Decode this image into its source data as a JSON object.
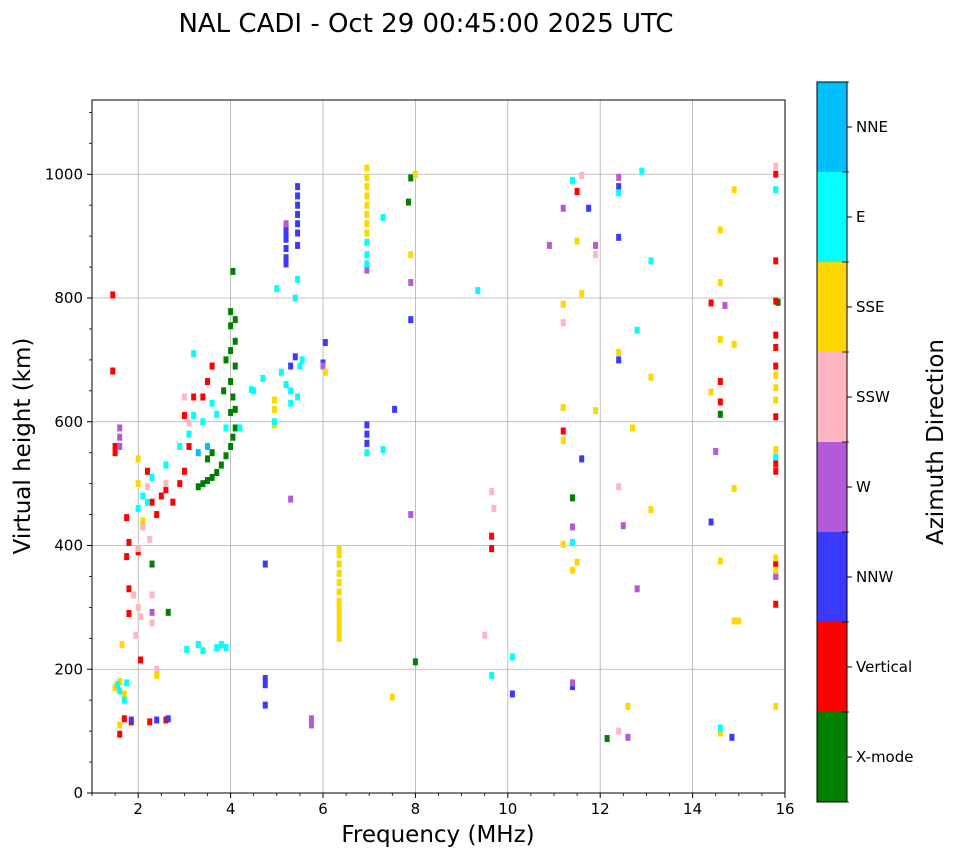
{
  "chart_data": {
    "type": "scatter",
    "title": "NAL CADI - Oct 29 00:45:00 2025 UTC",
    "xlabel": "Frequency (MHz)",
    "ylabel": "Virtual height (km)",
    "xlim": [
      1,
      16
    ],
    "ylim": [
      0,
      1120
    ],
    "xticks": [
      2,
      4,
      6,
      8,
      10,
      12,
      14,
      16
    ],
    "yticks": [
      0,
      200,
      400,
      600,
      800,
      1000
    ],
    "grid": true,
    "colorbar": {
      "label": "Azimuth Direction",
      "categories": [
        "X-mode",
        "Vertical",
        "NNW",
        "W",
        "SSW",
        "SSE",
        "E",
        "NNE"
      ],
      "colors": [
        "#008000",
        "#ff0000",
        "#3a3aff",
        "#b45ad8",
        "#ffb6c1",
        "#ffd700",
        "#00ffff",
        "#00bfff"
      ]
    },
    "series": [
      {
        "name": "X-mode",
        "points": [
          [
            3.3,
            495
          ],
          [
            3.4,
            500
          ],
          [
            3.5,
            505
          ],
          [
            3.6,
            510
          ],
          [
            3.7,
            518
          ],
          [
            3.8,
            530
          ],
          [
            3.9,
            545
          ],
          [
            4.0,
            560
          ],
          [
            4.05,
            575
          ],
          [
            4.1,
            590
          ],
          [
            4.0,
            615
          ],
          [
            4.1,
            620
          ],
          [
            4.05,
            640
          ],
          [
            4.0,
            665
          ],
          [
            4.1,
            690
          ],
          [
            4.0,
            715
          ],
          [
            4.1,
            730
          ],
          [
            4.0,
            755
          ],
          [
            4.1,
            765
          ],
          [
            4.0,
            778
          ],
          [
            4.05,
            843
          ],
          [
            3.9,
            700
          ],
          [
            3.85,
            650
          ],
          [
            3.6,
            550
          ],
          [
            3.5,
            540
          ],
          [
            2.3,
            370
          ],
          [
            2.65,
            292
          ],
          [
            7.9,
            994
          ],
          [
            7.85,
            955
          ],
          [
            8.0,
            212
          ],
          [
            11.4,
            477
          ],
          [
            12.15,
            88
          ],
          [
            14.6,
            612
          ],
          [
            15.85,
            793
          ]
        ]
      },
      {
        "name": "Vertical",
        "points": [
          [
            1.45,
            805
          ],
          [
            1.45,
            682
          ],
          [
            1.5,
            560
          ],
          [
            1.5,
            550
          ],
          [
            1.75,
            445
          ],
          [
            1.8,
            405
          ],
          [
            1.75,
            382
          ],
          [
            1.8,
            330
          ],
          [
            1.8,
            290
          ],
          [
            1.7,
            120
          ],
          [
            1.6,
            95
          ],
          [
            1.85,
            115
          ],
          [
            2.0,
            390
          ],
          [
            2.05,
            215
          ],
          [
            2.2,
            520
          ],
          [
            2.3,
            470
          ],
          [
            2.4,
            450
          ],
          [
            2.5,
            480
          ],
          [
            2.6,
            490
          ],
          [
            2.75,
            470
          ],
          [
            2.9,
            500
          ],
          [
            3.0,
            520
          ],
          [
            3.1,
            560
          ],
          [
            3.0,
            610
          ],
          [
            3.2,
            640
          ],
          [
            3.5,
            665
          ],
          [
            3.6,
            690
          ],
          [
            3.4,
            640
          ],
          [
            2.25,
            115
          ],
          [
            2.6,
            118
          ],
          [
            9.65,
            415
          ],
          [
            9.65,
            395
          ],
          [
            11.5,
            972
          ],
          [
            11.2,
            585
          ],
          [
            14.4,
            792
          ],
          [
            14.6,
            665
          ],
          [
            14.6,
            632
          ],
          [
            15.8,
            860
          ],
          [
            15.8,
            795
          ],
          [
            15.8,
            740
          ],
          [
            15.8,
            720
          ],
          [
            15.8,
            690
          ],
          [
            15.8,
            608
          ],
          [
            15.8,
            532
          ],
          [
            15.8,
            520
          ],
          [
            15.8,
            370
          ],
          [
            15.8,
            305
          ],
          [
            15.8,
            1000
          ]
        ]
      },
      {
        "name": "NNW",
        "points": [
          [
            5.2,
            915
          ],
          [
            5.2,
            905
          ],
          [
            5.2,
            895
          ],
          [
            5.2,
            880
          ],
          [
            5.2,
            865
          ],
          [
            5.2,
            855
          ],
          [
            5.45,
            980
          ],
          [
            5.45,
            965
          ],
          [
            5.45,
            950
          ],
          [
            5.45,
            935
          ],
          [
            5.45,
            920
          ],
          [
            5.45,
            905
          ],
          [
            5.45,
            885
          ],
          [
            5.4,
            705
          ],
          [
            5.3,
            690
          ],
          [
            6.05,
            728
          ],
          [
            6.0,
            695
          ],
          [
            6.95,
            595
          ],
          [
            6.95,
            580
          ],
          [
            6.95,
            565
          ],
          [
            4.75,
            370
          ],
          [
            4.75,
            185
          ],
          [
            4.75,
            175
          ],
          [
            4.75,
            142
          ],
          [
            7.9,
            765
          ],
          [
            7.55,
            620
          ],
          [
            2.65,
            120
          ],
          [
            2.4,
            118
          ],
          [
            1.85,
            118
          ],
          [
            10.1,
            160
          ],
          [
            11.4,
            172
          ],
          [
            11.75,
            945
          ],
          [
            11.6,
            540
          ],
          [
            12.4,
            980
          ],
          [
            12.4,
            898
          ],
          [
            12.4,
            700
          ],
          [
            14.4,
            438
          ],
          [
            14.85,
            90
          ],
          [
            15.8,
            350
          ]
        ]
      },
      {
        "name": "W",
        "points": [
          [
            1.6,
            590
          ],
          [
            1.6,
            575
          ],
          [
            1.6,
            560
          ],
          [
            5.2,
            920
          ],
          [
            5.3,
            475
          ],
          [
            5.75,
            120
          ],
          [
            5.75,
            110
          ],
          [
            6.0,
            690
          ],
          [
            7.9,
            825
          ],
          [
            7.9,
            450
          ],
          [
            6.95,
            845
          ],
          [
            10.9,
            885
          ],
          [
            11.4,
            430
          ],
          [
            11.4,
            178
          ],
          [
            11.9,
            885
          ],
          [
            12.4,
            995
          ],
          [
            12.5,
            432
          ],
          [
            12.8,
            330
          ],
          [
            12.6,
            90
          ],
          [
            14.5,
            552
          ],
          [
            14.7,
            788
          ],
          [
            15.8,
            350
          ],
          [
            11.2,
            945
          ],
          [
            2.3,
            292
          ]
        ]
      },
      {
        "name": "SSW",
        "points": [
          [
            1.9,
            320
          ],
          [
            2.0,
            300
          ],
          [
            2.05,
            285
          ],
          [
            1.95,
            255
          ],
          [
            2.0,
            395
          ],
          [
            2.1,
            430
          ],
          [
            2.25,
            410
          ],
          [
            2.3,
            320
          ],
          [
            2.3,
            275
          ],
          [
            2.4,
            200
          ],
          [
            2.2,
            495
          ],
          [
            2.6,
            500
          ],
          [
            3.0,
            640
          ],
          [
            3.1,
            598
          ],
          [
            9.5,
            255
          ],
          [
            9.65,
            487
          ],
          [
            9.7,
            460
          ],
          [
            11.2,
            760
          ],
          [
            11.9,
            870
          ],
          [
            12.4,
            100
          ],
          [
            12.4,
            495
          ],
          [
            11.6,
            998
          ],
          [
            15.8,
            1013
          ]
        ]
      },
      {
        "name": "SSE",
        "points": [
          [
            6.35,
            395
          ],
          [
            6.35,
            385
          ],
          [
            6.35,
            370
          ],
          [
            6.35,
            355
          ],
          [
            6.35,
            340
          ],
          [
            6.35,
            325
          ],
          [
            6.35,
            310
          ],
          [
            6.35,
            300
          ],
          [
            6.35,
            290
          ],
          [
            6.35,
            280
          ],
          [
            6.35,
            270
          ],
          [
            6.35,
            260
          ],
          [
            6.35,
            250
          ],
          [
            6.95,
            1010
          ],
          [
            6.95,
            995
          ],
          [
            6.95,
            980
          ],
          [
            6.95,
            965
          ],
          [
            6.95,
            950
          ],
          [
            6.95,
            935
          ],
          [
            6.95,
            920
          ],
          [
            6.95,
            905
          ],
          [
            1.5,
            170
          ],
          [
            1.6,
            180
          ],
          [
            1.7,
            160
          ],
          [
            1.6,
            110
          ],
          [
            1.65,
            240
          ],
          [
            2.0,
            540
          ],
          [
            2.0,
            500
          ],
          [
            2.1,
            440
          ],
          [
            2.4,
            190
          ],
          [
            4.95,
            635
          ],
          [
            4.95,
            620
          ],
          [
            4.95,
            595
          ],
          [
            6.05,
            680
          ],
          [
            7.5,
            155
          ],
          [
            7.9,
            870
          ],
          [
            8.0,
            1000
          ],
          [
            11.2,
            790
          ],
          [
            11.2,
            623
          ],
          [
            11.2,
            570
          ],
          [
            11.2,
            402
          ],
          [
            11.4,
            360
          ],
          [
            11.5,
            892
          ],
          [
            11.5,
            373
          ],
          [
            11.6,
            807
          ],
          [
            11.9,
            618
          ],
          [
            12.4,
            712
          ],
          [
            12.7,
            590
          ],
          [
            12.6,
            140
          ],
          [
            13.1,
            672
          ],
          [
            13.1,
            458
          ],
          [
            14.4,
            648
          ],
          [
            14.6,
            910
          ],
          [
            14.6,
            825
          ],
          [
            14.6,
            733
          ],
          [
            14.6,
            375
          ],
          [
            14.6,
            97
          ],
          [
            14.9,
            975
          ],
          [
            14.9,
            725
          ],
          [
            14.9,
            492
          ],
          [
            14.9,
            278
          ],
          [
            15.0,
            278
          ],
          [
            15.8,
            975
          ],
          [
            15.8,
            675
          ],
          [
            15.8,
            655
          ],
          [
            15.8,
            635
          ],
          [
            15.8,
            555
          ],
          [
            15.8,
            380
          ],
          [
            15.8,
            360
          ],
          [
            15.8,
            140
          ]
        ]
      },
      {
        "name": "E",
        "points": [
          [
            1.55,
            175
          ],
          [
            1.6,
            165
          ],
          [
            1.75,
            178
          ],
          [
            1.7,
            150
          ],
          [
            2.0,
            460
          ],
          [
            2.1,
            480
          ],
          [
            2.2,
            470
          ],
          [
            2.3,
            510
          ],
          [
            2.6,
            530
          ],
          [
            2.9,
            560
          ],
          [
            3.1,
            580
          ],
          [
            3.2,
            610
          ],
          [
            3.4,
            600
          ],
          [
            3.6,
            630
          ],
          [
            3.7,
            612
          ],
          [
            3.9,
            590
          ],
          [
            4.2,
            590
          ],
          [
            4.5,
            650
          ],
          [
            4.7,
            670
          ],
          [
            3.05,
            232
          ],
          [
            3.3,
            240
          ],
          [
            3.4,
            230
          ],
          [
            3.7,
            235
          ],
          [
            3.8,
            240
          ],
          [
            3.9,
            235
          ],
          [
            3.2,
            710
          ],
          [
            4.45,
            652
          ],
          [
            4.95,
            600
          ],
          [
            5.0,
            815
          ],
          [
            5.1,
            680
          ],
          [
            5.2,
            660
          ],
          [
            5.3,
            650
          ],
          [
            5.3,
            630
          ],
          [
            5.5,
            690
          ],
          [
            5.55,
            700
          ],
          [
            5.45,
            640
          ],
          [
            5.45,
            830
          ],
          [
            5.4,
            800
          ],
          [
            6.95,
            890
          ],
          [
            6.95,
            870
          ],
          [
            6.95,
            855
          ],
          [
            6.95,
            550
          ],
          [
            7.3,
            930
          ],
          [
            7.3,
            555
          ],
          [
            9.35,
            812
          ],
          [
            9.65,
            190
          ],
          [
            10.1,
            220
          ],
          [
            11.4,
            990
          ],
          [
            11.4,
            405
          ],
          [
            12.4,
            970
          ],
          [
            12.8,
            748
          ],
          [
            12.9,
            1005
          ],
          [
            13.1,
            860
          ],
          [
            14.6,
            105
          ],
          [
            15.8,
            975
          ],
          [
            15.8,
            543
          ]
        ]
      },
      {
        "name": "NNE",
        "points": [
          [
            3.5,
            560
          ],
          [
            3.3,
            550
          ]
        ]
      }
    ]
  }
}
